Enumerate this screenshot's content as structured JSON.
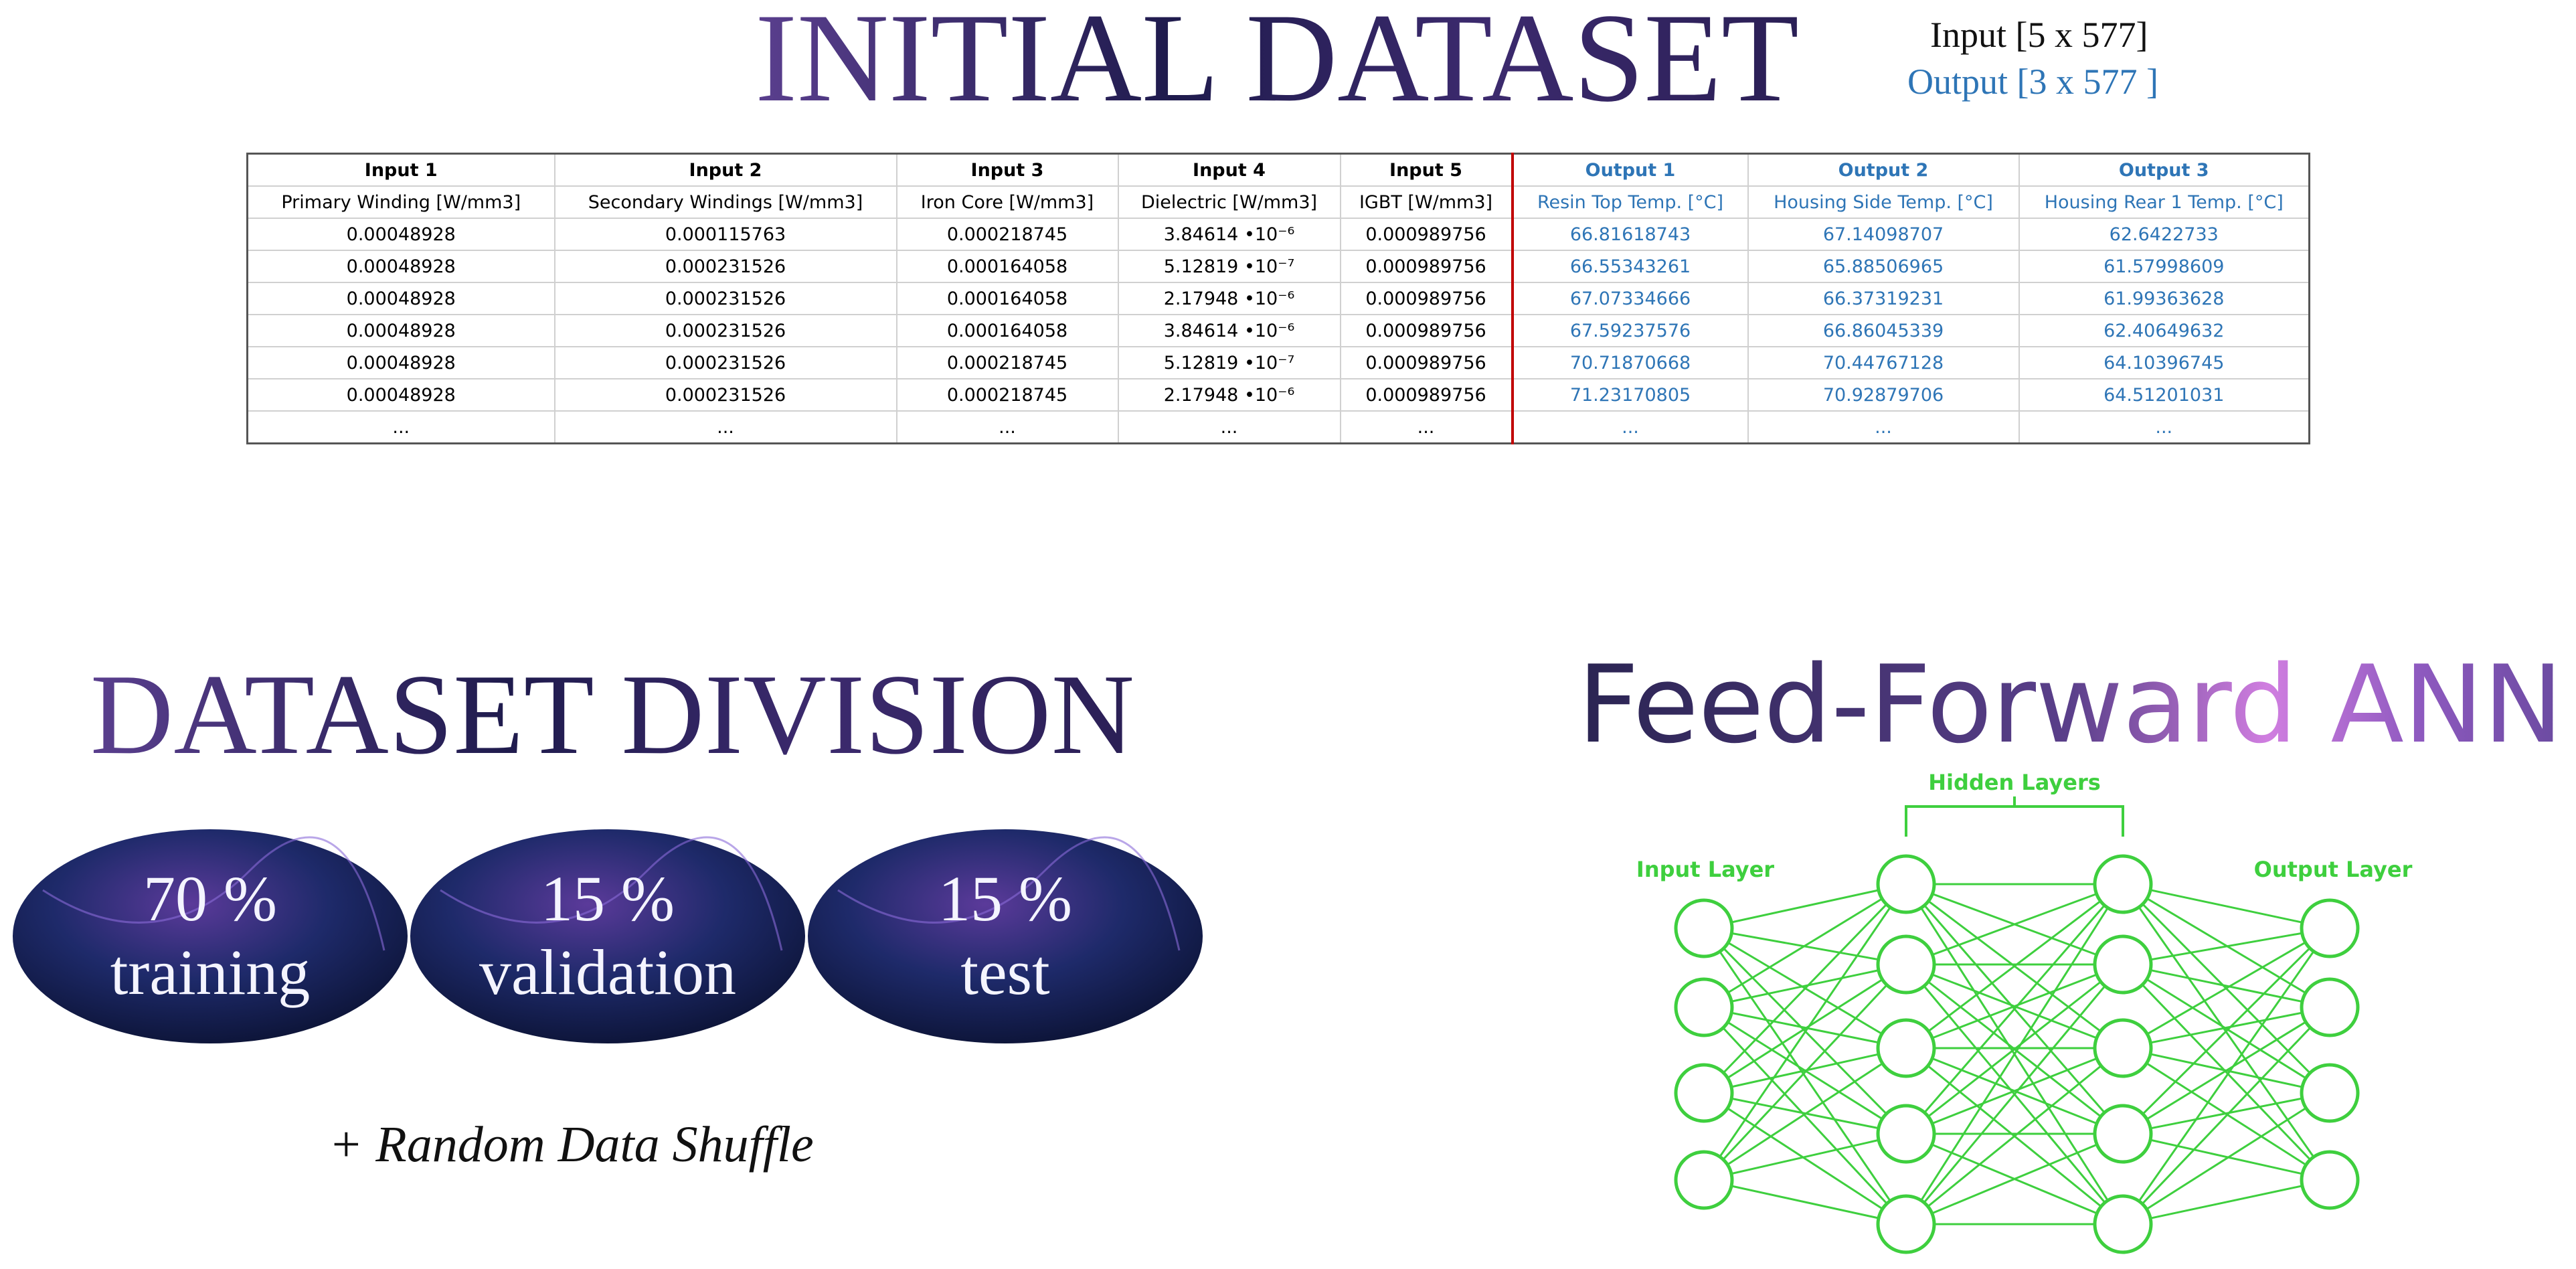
{
  "title": "INITIAL DATASET",
  "dims": {
    "input": "Input [5 x 577]",
    "output": "Output [3 x 577 ]"
  },
  "table": {
    "headers": [
      "Input 1",
      "Input 2",
      "Input 3",
      "Input 4",
      "Input 5",
      "Output 1",
      "Output 2",
      "Output 3"
    ],
    "units": [
      "Primary Winding [W/mm3]",
      "Secondary Windings [W/mm3]",
      "Iron Core [W/mm3]",
      "Dielectric [W/mm3]",
      "IGBT [W/mm3]",
      "Resin Top Temp. [°C]",
      "Housing Side Temp. [°C]",
      "Housing Rear 1 Temp. [°C]"
    ],
    "rows": [
      [
        "0.00048928",
        "0.000115763",
        "0.000218745",
        "3.84614 •10⁻⁶",
        "0.000989756",
        "66.81618743",
        "67.14098707",
        "62.6422733"
      ],
      [
        "0.00048928",
        "0.000231526",
        "0.000164058",
        "5.12819 •10⁻⁷",
        "0.000989756",
        "66.55343261",
        "65.88506965",
        "61.57998609"
      ],
      [
        "0.00048928",
        "0.000231526",
        "0.000164058",
        "2.17948 •10⁻⁶",
        "0.000989756",
        "67.07334666",
        "66.37319231",
        "61.99363628"
      ],
      [
        "0.00048928",
        "0.000231526",
        "0.000164058",
        "3.84614 •10⁻⁶",
        "0.000989756",
        "67.59237576",
        "66.86045339",
        "62.40649632"
      ],
      [
        "0.00048928",
        "0.000231526",
        "0.000218745",
        "5.12819 •10⁻⁷",
        "0.000989756",
        "70.71870668",
        "70.44767128",
        "64.10396745"
      ],
      [
        "0.00048928",
        "0.000231526",
        "0.000218745",
        "2.17948 •10⁻⁶",
        "0.000989756",
        "71.23170805",
        "70.92879706",
        "64.51201031"
      ],
      [
        "...",
        "...",
        "...",
        "...",
        "...",
        "...",
        "...",
        "..."
      ]
    ]
  },
  "division": {
    "title": "DATASET DIVISION",
    "parts": [
      {
        "percent": "70 %",
        "label": "training"
      },
      {
        "percent": "15 %",
        "label": "validation"
      },
      {
        "percent": "15 %",
        "label": "test"
      }
    ],
    "note": "+ Random Data Shuffle"
  },
  "ann": {
    "title": "Feed-Forward ANN",
    "hidden": "Hidden Layers",
    "input": "Input Layer",
    "output": "Output Layer"
  }
}
